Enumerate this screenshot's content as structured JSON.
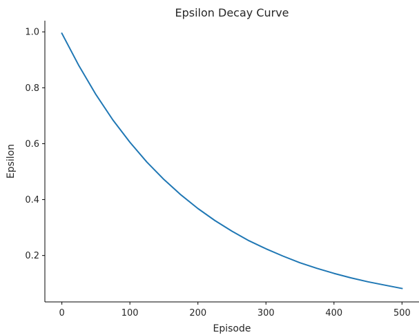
{
  "chart_data": {
    "type": "line",
    "title": "Epsilon Decay Curve",
    "xlabel": "Episode",
    "ylabel": "Epsilon",
    "xlim": [
      -25,
      525
    ],
    "ylim": [
      0.034,
      1.04
    ],
    "x_ticks": [
      0,
      100,
      200,
      300,
      400,
      500
    ],
    "x_tick_labels": [
      "0",
      "100",
      "200",
      "300",
      "400",
      "500"
    ],
    "y_ticks": [
      0.2,
      0.4,
      0.6,
      0.8,
      1.0
    ],
    "y_tick_labels": [
      "0.2",
      "0.4",
      "0.6",
      "0.8",
      "1.0"
    ],
    "grid": false,
    "spines": "left-bottom",
    "series": [
      {
        "color": "#1f77b4",
        "x": [
          0,
          25,
          50,
          75,
          100,
          125,
          150,
          175,
          200,
          225,
          250,
          275,
          300,
          325,
          350,
          375,
          400,
          425,
          450,
          475,
          500
        ],
        "y": [
          0.995,
          0.879,
          0.776,
          0.685,
          0.605,
          0.534,
          0.472,
          0.417,
          0.368,
          0.325,
          0.287,
          0.253,
          0.224,
          0.198,
          0.174,
          0.154,
          0.136,
          0.12,
          0.106,
          0.094,
          0.082
        ]
      }
    ]
  }
}
